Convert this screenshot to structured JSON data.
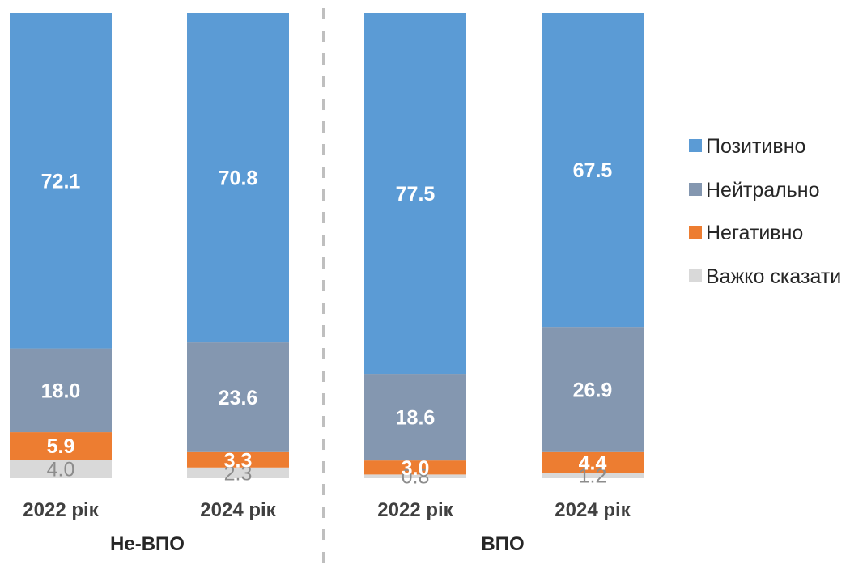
{
  "chart_data": {
    "type": "bar",
    "stacked": true,
    "categories": [
      "2022 рік",
      "2024 рік",
      "2022 рік",
      "2024 рік"
    ],
    "groups": [
      {
        "label": "Не-ВПО",
        "categories": [
          0,
          1
        ]
      },
      {
        "label": "ВПО",
        "categories": [
          2,
          3
        ]
      }
    ],
    "series": [
      {
        "name": "Важко сказати",
        "color": "#d9d9d9",
        "values": [
          4.0,
          2.3,
          0.8,
          1.2
        ],
        "labels": [
          "4.0",
          "2.3",
          "0.8",
          "1.2"
        ]
      },
      {
        "name": "Негативно",
        "color": "#ed7d31",
        "values": [
          5.9,
          3.3,
          3.0,
          4.4
        ],
        "labels": [
          "5.9",
          "3.3",
          "3.0",
          "4.4"
        ]
      },
      {
        "name": "Нейтрально",
        "color": "#8497b0",
        "values": [
          18.0,
          23.6,
          18.6,
          26.9
        ],
        "labels": [
          "18.0",
          "23.6",
          "18.6",
          "26.9"
        ]
      },
      {
        "name": "Позитивно",
        "color": "#5b9bd5",
        "values": [
          72.1,
          70.8,
          77.5,
          67.5
        ],
        "labels": [
          "72.1",
          "70.8",
          "77.5",
          "67.5"
        ]
      }
    ],
    "legend_order": [
      "Позитивно",
      "Нейтрально",
      "Негативно",
      "Важко сказати"
    ],
    "legend_position": "right",
    "ylim": [
      0,
      100
    ],
    "grid": false,
    "group_separator": "dashed"
  }
}
